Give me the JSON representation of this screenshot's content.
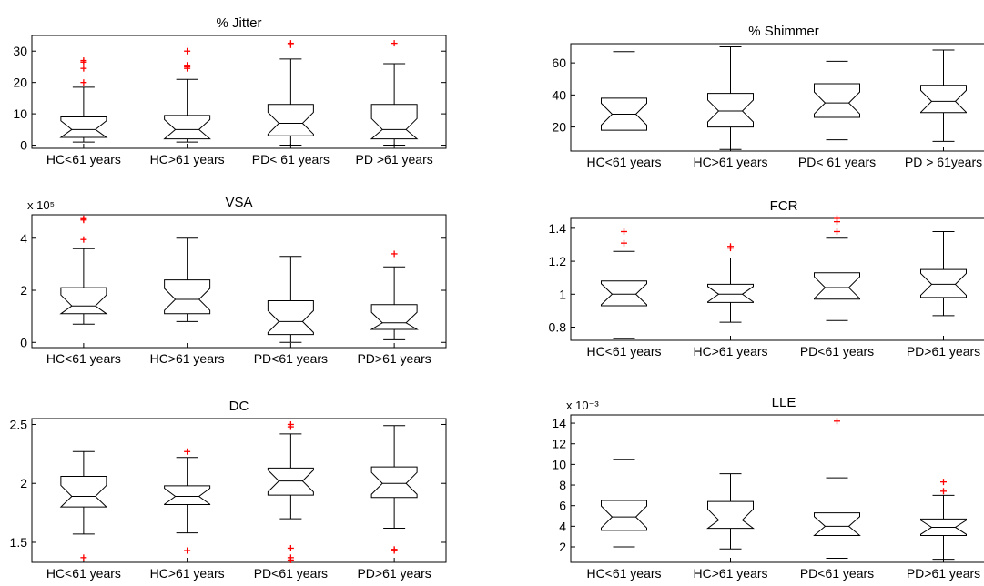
{
  "outlier_color": "#ff0000",
  "chart_data": [
    {
      "type": "boxplot",
      "notched": true,
      "title": "% Jitter",
      "exponent_label": "",
      "categories": [
        "HC<61 years",
        "HC>61 years",
        "PD< 61 years",
        "PD >61 years"
      ],
      "ylim": [
        -1,
        35
      ],
      "yticks": [
        0,
        10,
        20,
        30
      ],
      "yticklabels": [
        "0",
        "10",
        "20",
        "30"
      ],
      "boxes": [
        {
          "whisker_low": 1,
          "q1": 2.5,
          "median": 5,
          "q3": 9,
          "whisker_high": 18.5,
          "outliers": [
            20,
            24.5,
            26.5,
            27
          ]
        },
        {
          "whisker_low": 1,
          "q1": 2,
          "median": 5,
          "q3": 9.5,
          "whisker_high": 21,
          "outliers": [
            24.5,
            25,
            25.5,
            30
          ]
        },
        {
          "whisker_low": 0,
          "q1": 3,
          "median": 7,
          "q3": 13,
          "whisker_high": 27.5,
          "outliers": [
            32,
            32.5
          ]
        },
        {
          "whisker_low": 0,
          "q1": 2,
          "median": 5,
          "q3": 13,
          "whisker_high": 26,
          "outliers": [
            32.5
          ]
        }
      ]
    },
    {
      "type": "boxplot",
      "notched": true,
      "title": "% Shimmer",
      "exponent_label": "",
      "categories": [
        "HC<61 years",
        "HC>61 years",
        "PD< 61 years",
        "PD > 61years"
      ],
      "ylim": [
        5,
        72
      ],
      "yticks": [
        20,
        40,
        60
      ],
      "yticklabels": [
        "20",
        "40",
        "60"
      ],
      "boxes": [
        {
          "whisker_low": 5,
          "q1": 18,
          "median": 28,
          "q3": 38,
          "whisker_high": 67,
          "outliers": []
        },
        {
          "whisker_low": 6,
          "q1": 20,
          "median": 30,
          "q3": 41,
          "whisker_high": 70,
          "outliers": []
        },
        {
          "whisker_low": 12,
          "q1": 26,
          "median": 35,
          "q3": 47,
          "whisker_high": 61,
          "outliers": []
        },
        {
          "whisker_low": 11,
          "q1": 29,
          "median": 36,
          "q3": 46,
          "whisker_high": 68,
          "outliers": []
        }
      ]
    },
    {
      "type": "boxplot",
      "notched": true,
      "title": "VSA",
      "exponent_label": "x 10⁵",
      "categories": [
        "HC<61 years",
        "HC>61 years",
        "PD<61 years",
        "PD>61 years"
      ],
      "ylim": [
        -0.2,
        4.9
      ],
      "yticks": [
        0,
        2,
        4
      ],
      "yticklabels": [
        "0",
        "2",
        "4"
      ],
      "boxes": [
        {
          "whisker_low": 0.7,
          "q1": 1.1,
          "median": 1.4,
          "q3": 2.1,
          "whisker_high": 3.6,
          "outliers": [
            3.95,
            4.7,
            4.75
          ]
        },
        {
          "whisker_low": 0.8,
          "q1": 1.1,
          "median": 1.65,
          "q3": 2.4,
          "whisker_high": 4.0,
          "outliers": []
        },
        {
          "whisker_low": 0,
          "q1": 0.3,
          "median": 0.8,
          "q3": 1.6,
          "whisker_high": 3.3,
          "outliers": []
        },
        {
          "whisker_low": 0.1,
          "q1": 0.5,
          "median": 0.75,
          "q3": 1.45,
          "whisker_high": 2.9,
          "outliers": [
            3.4
          ]
        }
      ]
    },
    {
      "type": "boxplot",
      "notched": true,
      "title": "FCR",
      "exponent_label": "",
      "categories": [
        "HC<61 years",
        "HC>61 years",
        "PD<61 years",
        "PD>61 years"
      ],
      "ylim": [
        0.72,
        1.46
      ],
      "yticks": [
        0.8,
        1,
        1.2,
        1.4
      ],
      "yticklabels": [
        "0.8",
        "1",
        "1.2",
        "1.4"
      ],
      "boxes": [
        {
          "whisker_low": 0.73,
          "q1": 0.93,
          "median": 1.0,
          "q3": 1.08,
          "whisker_high": 1.26,
          "outliers": [
            1.31,
            1.38
          ]
        },
        {
          "whisker_low": 0.83,
          "q1": 0.95,
          "median": 1.0,
          "q3": 1.06,
          "whisker_high": 1.22,
          "outliers": [
            1.28,
            1.29
          ]
        },
        {
          "whisker_low": 0.84,
          "q1": 0.97,
          "median": 1.04,
          "q3": 1.13,
          "whisker_high": 1.34,
          "outliers": [
            1.38,
            1.44,
            1.46
          ]
        },
        {
          "whisker_low": 0.87,
          "q1": 0.98,
          "median": 1.06,
          "q3": 1.15,
          "whisker_high": 1.38,
          "outliers": []
        }
      ]
    },
    {
      "type": "boxplot",
      "notched": true,
      "title": "DC",
      "exponent_label": "",
      "categories": [
        "HC<61 years",
        "HC>61 years",
        "PD<61 years",
        "PD>61 years"
      ],
      "ylim": [
        1.33,
        2.55
      ],
      "yticks": [
        1.5,
        2,
        2.5
      ],
      "yticklabels": [
        "1.5",
        "2",
        "2.5"
      ],
      "boxes": [
        {
          "whisker_low": 1.57,
          "q1": 1.8,
          "median": 1.89,
          "q3": 2.06,
          "whisker_high": 2.27,
          "outliers": [
            1.37
          ]
        },
        {
          "whisker_low": 1.58,
          "q1": 1.82,
          "median": 1.89,
          "q3": 1.98,
          "whisker_high": 2.22,
          "outliers": [
            1.43,
            2.27
          ]
        },
        {
          "whisker_low": 1.7,
          "q1": 1.9,
          "median": 2.02,
          "q3": 2.13,
          "whisker_high": 2.42,
          "outliers": [
            1.35,
            1.37,
            1.45,
            2.48,
            2.5
          ]
        },
        {
          "whisker_low": 1.62,
          "q1": 1.88,
          "median": 2.0,
          "q3": 2.14,
          "whisker_high": 2.49,
          "outliers": [
            1.43,
            1.44
          ]
        }
      ]
    },
    {
      "type": "boxplot",
      "notched": true,
      "title": "LLE",
      "exponent_label": "x 10⁻³",
      "categories": [
        "HC<61 years",
        "HC>61 years",
        "PD<61 years",
        "PD>61 years"
      ],
      "ylim": [
        0.5,
        14.8
      ],
      "yticks": [
        2,
        4,
        6,
        8,
        10,
        12,
        14
      ],
      "yticklabels": [
        "2",
        "4",
        "6",
        "8",
        "10",
        "12",
        "14"
      ],
      "boxes": [
        {
          "whisker_low": 2,
          "q1": 3.6,
          "median": 4.9,
          "q3": 6.5,
          "whisker_high": 10.5,
          "outliers": []
        },
        {
          "whisker_low": 1.8,
          "q1": 3.8,
          "median": 4.6,
          "q3": 6.4,
          "whisker_high": 9.1,
          "outliers": []
        },
        {
          "whisker_low": 0.9,
          "q1": 3.1,
          "median": 4.0,
          "q3": 5.3,
          "whisker_high": 8.7,
          "outliers": [
            14.2
          ]
        },
        {
          "whisker_low": 0.8,
          "q1": 3.1,
          "median": 3.9,
          "q3": 4.7,
          "whisker_high": 7.0,
          "outliers": [
            7.4,
            8.3
          ]
        }
      ]
    }
  ]
}
